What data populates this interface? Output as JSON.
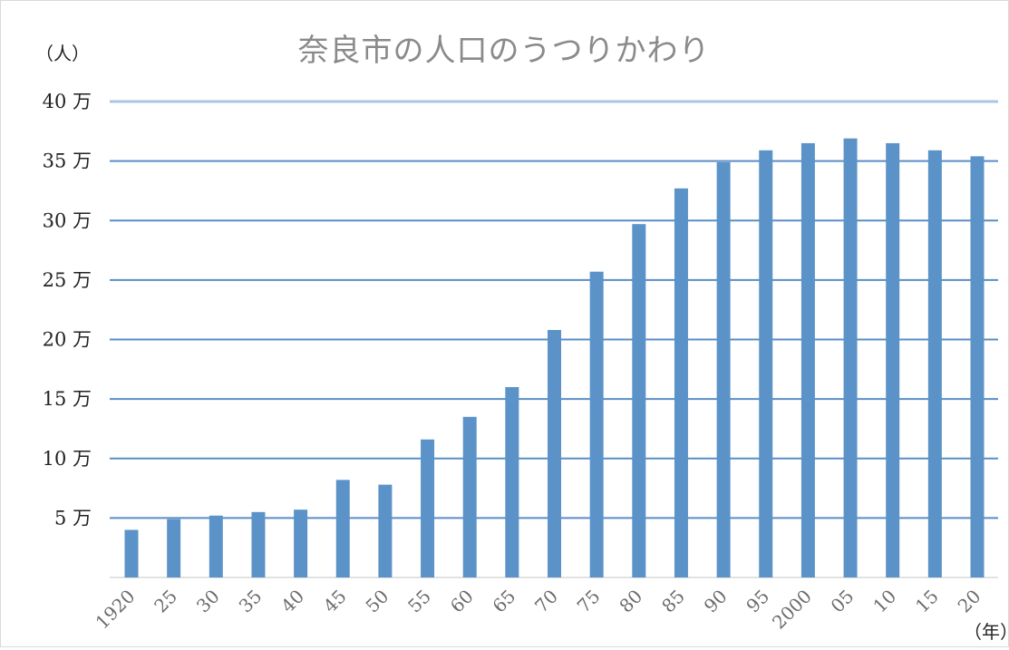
{
  "chart_data": {
    "type": "bar",
    "title": "奈良市の人口のうつりかわり",
    "ylabel": "（人）",
    "xlabel": "（年）",
    "ylim": [
      0,
      400000
    ],
    "yticks": [
      {
        "value": 50000,
        "label": "5 万"
      },
      {
        "value": 100000,
        "label": "10 万"
      },
      {
        "value": 150000,
        "label": "15 万"
      },
      {
        "value": 200000,
        "label": "20 万"
      },
      {
        "value": 250000,
        "label": "25 万"
      },
      {
        "value": 300000,
        "label": "30 万"
      },
      {
        "value": 350000,
        "label": "35 万"
      },
      {
        "value": 400000,
        "label": "40 万"
      }
    ],
    "categories": [
      "1920",
      "25",
      "30",
      "35",
      "40",
      "45",
      "50",
      "55",
      "60",
      "65",
      "70",
      "75",
      "80",
      "85",
      "90",
      "95",
      "2000",
      "05",
      "10",
      "15",
      "20"
    ],
    "values": [
      40000,
      49000,
      52000,
      55000,
      57000,
      82000,
      78000,
      116000,
      135000,
      160000,
      208000,
      257000,
      297000,
      327000,
      349000,
      359000,
      365000,
      369000,
      365000,
      359000,
      354000
    ],
    "grid": true,
    "bar_color": "#5b93c9",
    "grid_color": "#5a8ec5"
  }
}
